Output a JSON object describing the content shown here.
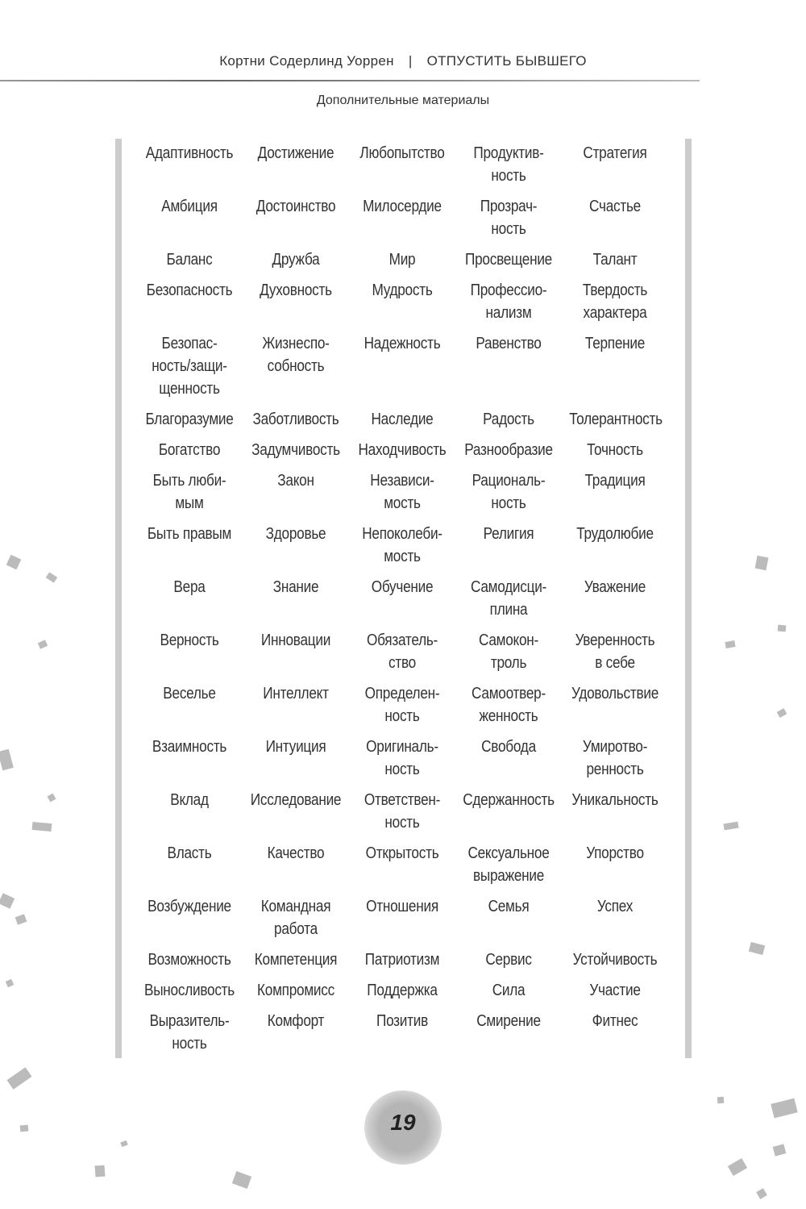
{
  "header": {
    "author": "Кортни Содерлинд Уоррен",
    "separator": "|",
    "book_title": "ОТПУСТИТЬ БЫВШЕГО"
  },
  "section": "Дополнительные материалы",
  "values_table": [
    [
      "Адаптивность",
      "Достижение",
      "Любопытство",
      "Продуктив-\nность",
      "Стратегия"
    ],
    [
      "Амбиция",
      "Достоинство",
      "Милосердие",
      "Прозрач-\nность",
      "Счастье"
    ],
    [
      "Баланс",
      "Дружба",
      "Мир",
      "Просвещение",
      "Талант"
    ],
    [
      "Безопасность",
      "Духовность",
      "Мудрость",
      "Профессио-\nнализм",
      "Твердость\nхарактера"
    ],
    [
      "Безопас-\nность/защи-\nщенность",
      "Жизнеспо-\nсобность",
      "Надежность",
      "Равенство",
      "Терпение"
    ],
    [
      "Благоразумие",
      "Заботливость",
      "Наследие",
      "Радость",
      "Толерантность"
    ],
    [
      "Богатство",
      "Задумчивость",
      "Находчивость",
      "Разнообразие",
      "Точность"
    ],
    [
      "Быть люби-\nмым",
      "Закон",
      "Независи-\nмость",
      "Рациональ-\nность",
      "Традиция"
    ],
    [
      "Быть правым",
      "Здоровье",
      "Непоколеби-\nмость",
      "Религия",
      "Трудолюбие"
    ],
    [
      "Вера",
      "Знание",
      "Обучение",
      "Самодисци-\nплина",
      "Уважение"
    ],
    [
      "Верность",
      "Инновации",
      "Обязатель-\nство",
      "Самокон-\nтроль",
      "Уверенность\nв себе"
    ],
    [
      "Веселье",
      "Интеллект",
      "Определен-\nность",
      "Самоотвер-\nженность",
      "Удовольствие"
    ],
    [
      "Взаимность",
      "Интуиция",
      "Оригиналь-\nность",
      "Свобода",
      "Умиротво-\nренность"
    ],
    [
      "Вклад",
      "Исследование",
      "Ответствен-\nность",
      "Сдержанность",
      "Уникальность"
    ],
    [
      "Власть",
      "Качество",
      "Открытость",
      "Сексуальное\nвыражение",
      "Упорство"
    ],
    [
      "Возбуждение",
      "Командная\nработа",
      "Отношения",
      "Семья",
      "Успех"
    ],
    [
      "Возможность",
      "Компетенция",
      "Патриотизм",
      "Сервис",
      "Устойчивость"
    ],
    [
      "Выносливость",
      "Компромисс",
      "Поддержка",
      "Сила",
      "Участие"
    ],
    [
      "Выразитель-\nность",
      "Комфорт",
      "Позитив",
      "Смирение",
      "Фитнес"
    ]
  ],
  "page_number": "19"
}
